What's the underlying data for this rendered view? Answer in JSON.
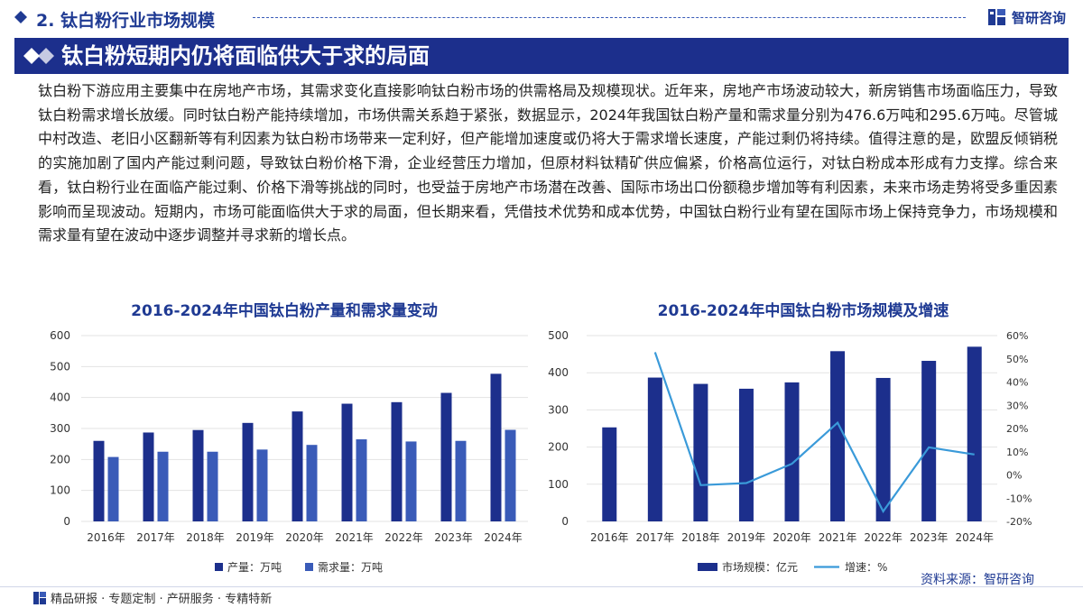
{
  "header": {
    "section_title": "2. 钛白粉行业市场规模",
    "logo_text": "智研咨询",
    "icon": "diamond-icon",
    "accent_color": "#1f3a93"
  },
  "banner": {
    "title": "钛白粉短期内仍将面临供大于求的局面",
    "color": "#1c2f8c",
    "icon": "double-diamond-icon"
  },
  "paragraph": "钛白粉下游应用主要集中在房地产市场，其需求变化直接影响钛白粉市场的供需格局及规模现状。近年来，房地产市场波动较大，新房销售市场面临压力，导致钛白粉需求增长放缓。同时钛白粉产能持续增加，市场供需关系趋于紧张，数据显示，2024年我国钛白粉产量和需求量分别为476.6万吨和295.6万吨。尽管城中村改造、老旧小区翻新等有利因素为钛白粉市场带来一定利好，但产能增加速度或仍将大于需求增长速度，产能过剩仍将持续。值得注意的是，欧盟反倾销税的实施加剧了国内产能过剩问题，导致钛白粉价格下滑，企业经营压力增加，但原材料钛精矿供应偏紧，价格高位运行，对钛白粉成本形成有力支撑。综合来看，钛白粉行业在面临产能过剩、价格下滑等挑战的同时，也受益于房地产市场潜在改善、国际市场出口份额稳步增加等有利因素，未来市场走势将受多重因素影响而呈现波动。短期内，市场可能面临供大于求的局面，但长期来看，凭借技术优势和成本优势，中国钛白粉行业有望在国际市场上保持竞争力，市场规模和需求量有望在波动中逐步调整并寻求新的增长点。",
  "chart_data": [
    {
      "type": "bar",
      "title": "2016-2024年中国钛白粉产量和需求量变动",
      "categories": [
        "2016年",
        "2017年",
        "2018年",
        "2019年",
        "2020年",
        "2021年",
        "2022年",
        "2023年",
        "2024年"
      ],
      "series": [
        {
          "name": "产量：万吨",
          "values": [
            260,
            287,
            295,
            318,
            355,
            380,
            385,
            415,
            476.6
          ],
          "color": "#1c2f8c"
        },
        {
          "name": "需求量：万吨",
          "values": [
            208,
            225,
            225,
            232,
            247,
            265,
            258,
            260,
            295.6
          ],
          "color": "#3a5bb8"
        }
      ],
      "yticks": [
        "0",
        "100",
        "200",
        "300",
        "400",
        "500",
        "600"
      ],
      "ylim": [
        0,
        600
      ],
      "grid": true,
      "legend": "bottom"
    },
    {
      "type": "bar+line",
      "title": "2016-2024年中国钛白粉市场规模及增速",
      "categories": [
        "2016年",
        "2017年",
        "2018年",
        "2019年",
        "2020年",
        "2021年",
        "2022年",
        "2023年",
        "2024年"
      ],
      "series": [
        {
          "name": "市场规模：亿元",
          "type": "bar",
          "axis": "left",
          "values": [
            253,
            387,
            370,
            357,
            374,
            458,
            386,
            432,
            470
          ],
          "color": "#1c2f8c"
        },
        {
          "name": "增速：%",
          "type": "line",
          "axis": "right",
          "values": [
            null,
            52.8,
            -4.4,
            -3.5,
            4.8,
            22.5,
            -15.7,
            11.9,
            8.8
          ],
          "color": "#3a9ad9"
        }
      ],
      "yticks_left": [
        "0",
        "100",
        "200",
        "300",
        "400",
        "500"
      ],
      "ylim_left": [
        0,
        500
      ],
      "yticks_right": [
        "-20%",
        "-10%",
        "0%",
        "10%",
        "20%",
        "30%",
        "40%",
        "50%",
        "60%"
      ],
      "ylim_right": [
        -20,
        60
      ],
      "grid": true,
      "legend": "bottom"
    }
  ],
  "source": "资料来源：智研咨询",
  "footer": {
    "text": "精品研报 · 专题定制 · 产研服务 · 专精特新"
  }
}
